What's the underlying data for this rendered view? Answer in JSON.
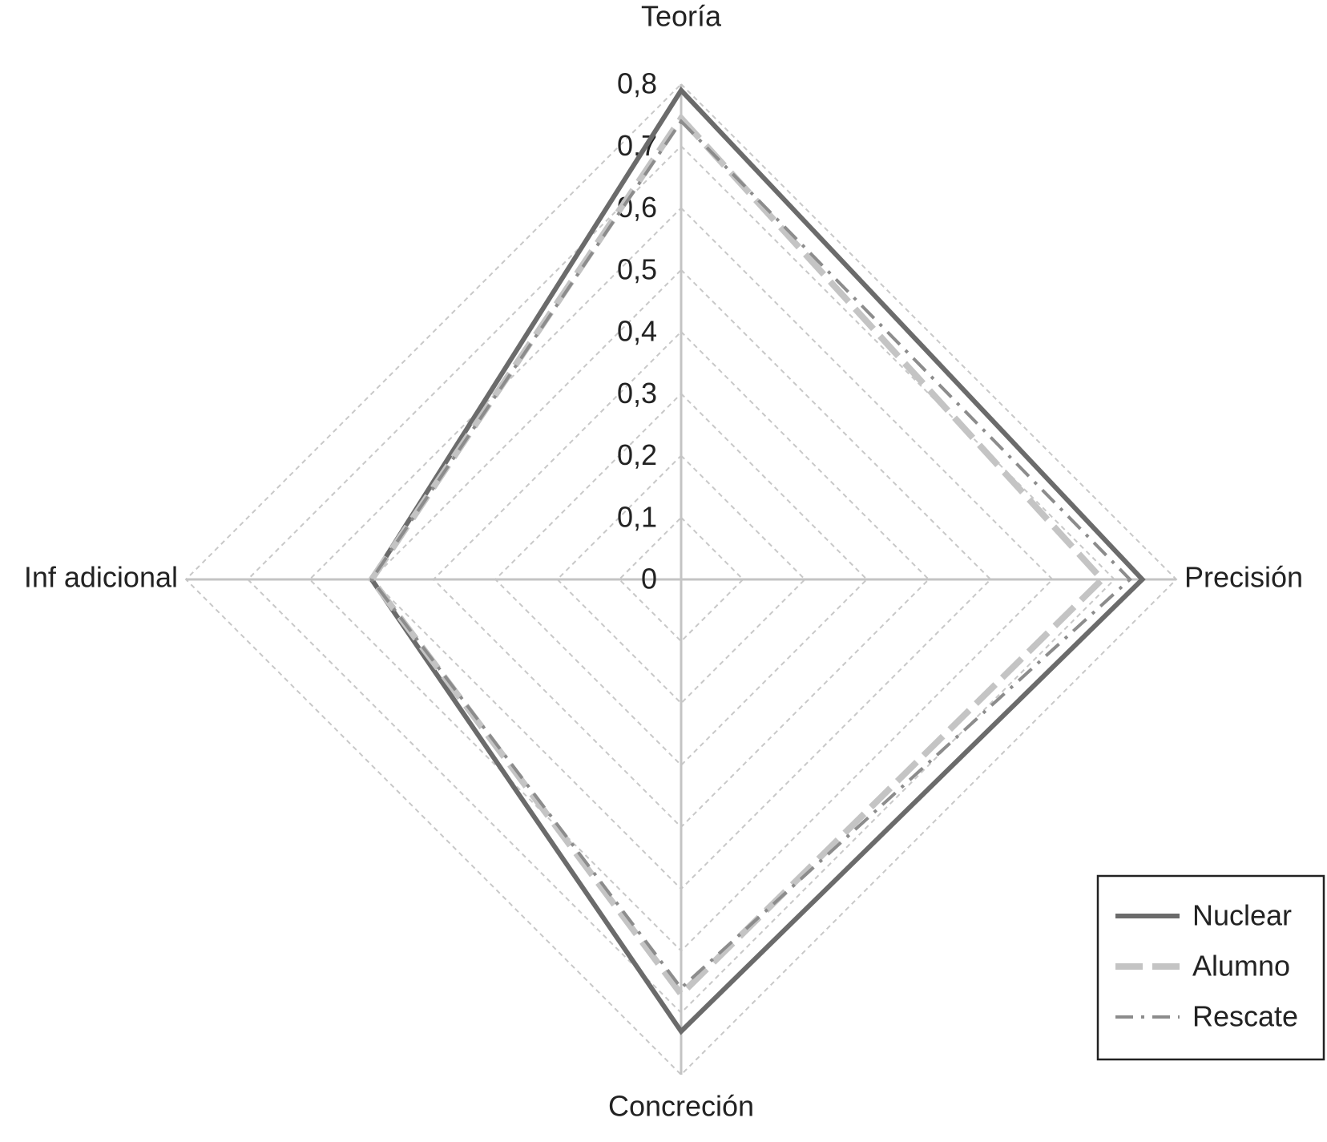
{
  "chart_data": {
    "type": "radar",
    "categories": [
      "Teoría",
      "Precisión",
      "Concreción",
      "Inf adicional"
    ],
    "series": [
      {
        "name": "Nuclear",
        "color": "#6b6b6b",
        "line_style": "solid",
        "values": [
          0.79,
          0.745,
          0.73,
          0.5
        ]
      },
      {
        "name": "Alumno",
        "color": "#c4c4c4",
        "line_style": "dashed",
        "values": [
          0.745,
          0.68,
          0.67,
          0.5
        ]
      },
      {
        "name": "Rescate",
        "color": "#8c8c8c",
        "line_style": "dashdot",
        "values": [
          0.74,
          0.725,
          0.66,
          0.5
        ]
      }
    ],
    "rlim": [
      0,
      0.8
    ],
    "rticks": [
      0,
      {
        "value": 0.1,
        "label": "0,1"
      },
      {
        "value": 0.2,
        "label": "0,2"
      },
      {
        "value": 0.3,
        "label": "0,3"
      },
      {
        "value": 0.4,
        "label": "0,4"
      },
      {
        "value": 0.5,
        "label": "0,5"
      },
      {
        "value": 0.6,
        "label": "0,6"
      },
      {
        "value": 0.7,
        "label": "0,7"
      },
      {
        "value": 0.8,
        "label": "0,8"
      }
    ],
    "grid": true,
    "legend": "lower right"
  }
}
